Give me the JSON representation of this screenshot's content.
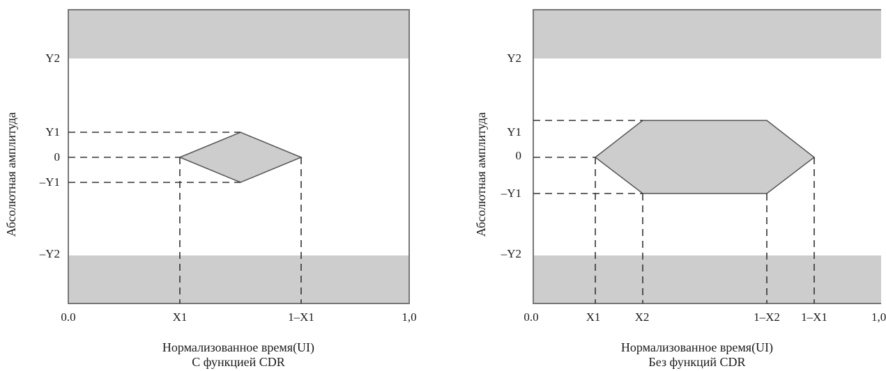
{
  "panels": [
    {
      "y_axis_title": "Абсолютная амплитуда",
      "x_axis_title": "Нормализованное время(UI)",
      "caption": "С функцией CDR",
      "y_labels": {
        "y2": "Y2",
        "y1": "Y1",
        "zero": "0",
        "neg_y1": "–Y1",
        "neg_y2": "–Y2"
      },
      "x_labels": [
        "0.0",
        "X1",
        "1–X1",
        "1,0"
      ]
    },
    {
      "y_axis_title": "Абсолютная амплитуда",
      "x_axis_title": "Нормализованное время(UI)",
      "caption": "Без функций CDR",
      "y_labels": {
        "y2": "Y2",
        "y1": "Y1",
        "zero": "0",
        "neg_y1": "–Y1",
        "neg_y2": "–Y2"
      },
      "x_labels": [
        "0.0",
        "X1",
        "X2",
        "1–X2",
        "1–X1",
        "1,0"
      ]
    }
  ],
  "colors": {
    "mask_fill": "#cdcdcd",
    "axis": "#777777",
    "dash": "#333333"
  }
}
